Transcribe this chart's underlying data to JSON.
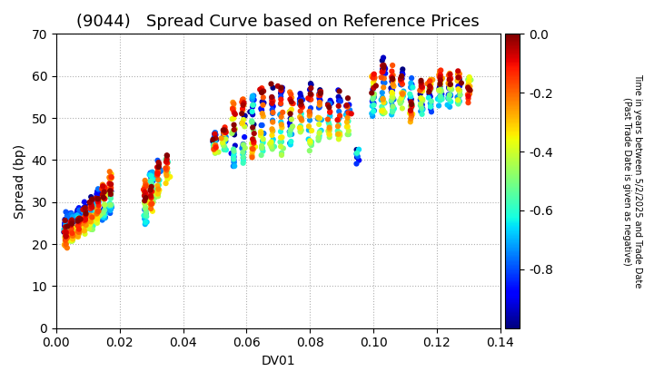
{
  "title": "(9044)   Spread Curve based on Reference Prices",
  "xlabel": "DV01",
  "ylabel": "Spread (bp)",
  "xlim": [
    0.0,
    0.14
  ],
  "ylim": [
    0,
    70
  ],
  "xticks": [
    0.0,
    0.02,
    0.04,
    0.06,
    0.08,
    0.1,
    0.12,
    0.14
  ],
  "yticks": [
    0,
    10,
    20,
    30,
    40,
    50,
    60,
    70
  ],
  "colorbar_label": "Time in years between 5/2/2025 and Trade Date\n(Past Trade Date is given as negative)",
  "clim": [
    -1.0,
    0.0
  ],
  "colorbar_ticks": [
    0.0,
    -0.2,
    -0.4,
    -0.6,
    -0.8
  ],
  "background_color": "#ffffff",
  "grid_color": "#b0b0b0",
  "title_fontsize": 13,
  "axis_fontsize": 10,
  "scatter_size": 20,
  "bonds": [
    {
      "dv01": 0.003,
      "spread_base": 23,
      "spread_range": 5,
      "n": 60,
      "t_min": -1.0,
      "t_max": 0.0
    },
    {
      "dv01": 0.005,
      "spread_base": 24,
      "spread_range": 5,
      "n": 50,
      "t_min": -1.0,
      "t_max": 0.0
    },
    {
      "dv01": 0.007,
      "spread_base": 25,
      "spread_range": 5,
      "n": 55,
      "t_min": -1.0,
      "t_max": 0.0
    },
    {
      "dv01": 0.009,
      "spread_base": 26,
      "spread_range": 5,
      "n": 50,
      "t_min": -1.0,
      "t_max": 0.0
    },
    {
      "dv01": 0.011,
      "spread_base": 27,
      "spread_range": 6,
      "n": 50,
      "t_min": -1.0,
      "t_max": 0.0
    },
    {
      "dv01": 0.013,
      "spread_base": 29,
      "spread_range": 6,
      "n": 45,
      "t_min": -1.0,
      "t_max": 0.0
    },
    {
      "dv01": 0.015,
      "spread_base": 30,
      "spread_range": 7,
      "n": 45,
      "t_min": -1.0,
      "t_max": 0.0
    },
    {
      "dv01": 0.017,
      "spread_base": 32,
      "spread_range": 7,
      "n": 40,
      "t_min": -1.0,
      "t_max": 0.0
    },
    {
      "dv01": 0.028,
      "spread_base": 30,
      "spread_range": 8,
      "n": 35,
      "t_min": -0.9,
      "t_max": 0.0
    },
    {
      "dv01": 0.03,
      "spread_base": 33,
      "spread_range": 8,
      "n": 35,
      "t_min": -0.9,
      "t_max": 0.0
    },
    {
      "dv01": 0.032,
      "spread_base": 35,
      "spread_range": 7,
      "n": 30,
      "t_min": -0.8,
      "t_max": 0.0
    },
    {
      "dv01": 0.035,
      "spread_base": 38,
      "spread_range": 5,
      "n": 20,
      "t_min": -0.6,
      "t_max": 0.0
    },
    {
      "dv01": 0.05,
      "spread_base": 44,
      "spread_range": 4,
      "n": 25,
      "t_min": -1.0,
      "t_max": 0.0
    },
    {
      "dv01": 0.053,
      "spread_base": 45,
      "spread_range": 4,
      "n": 25,
      "t_min": -1.0,
      "t_max": 0.0
    },
    {
      "dv01": 0.056,
      "spread_base": 46,
      "spread_range": 14,
      "n": 30,
      "t_min": -1.0,
      "t_max": 0.0
    },
    {
      "dv01": 0.059,
      "spread_base": 47,
      "spread_range": 14,
      "n": 30,
      "t_min": -1.0,
      "t_max": 0.0
    },
    {
      "dv01": 0.062,
      "spread_base": 48,
      "spread_range": 14,
      "n": 30,
      "t_min": -1.0,
      "t_max": 0.0
    },
    {
      "dv01": 0.065,
      "spread_base": 49,
      "spread_range": 14,
      "n": 30,
      "t_min": -1.0,
      "t_max": 0.0
    },
    {
      "dv01": 0.068,
      "spread_base": 49,
      "spread_range": 14,
      "n": 28,
      "t_min": -1.0,
      "t_max": 0.0
    },
    {
      "dv01": 0.071,
      "spread_base": 50,
      "spread_range": 14,
      "n": 28,
      "t_min": -1.0,
      "t_max": 0.0
    },
    {
      "dv01": 0.074,
      "spread_base": 50,
      "spread_range": 10,
      "n": 25,
      "t_min": -1.0,
      "t_max": 0.0
    },
    {
      "dv01": 0.077,
      "spread_base": 51,
      "spread_range": 8,
      "n": 25,
      "t_min": -1.0,
      "t_max": 0.0
    },
    {
      "dv01": 0.08,
      "spread_base": 50,
      "spread_range": 14,
      "n": 28,
      "t_min": -1.0,
      "t_max": 0.0
    },
    {
      "dv01": 0.083,
      "spread_base": 51,
      "spread_range": 10,
      "n": 25,
      "t_min": -1.0,
      "t_max": 0.0
    },
    {
      "dv01": 0.086,
      "spread_base": 50,
      "spread_range": 8,
      "n": 22,
      "t_min": -1.0,
      "t_max": 0.0
    },
    {
      "dv01": 0.089,
      "spread_base": 50,
      "spread_range": 10,
      "n": 22,
      "t_min": -1.0,
      "t_max": 0.0
    },
    {
      "dv01": 0.092,
      "spread_base": 50,
      "spread_range": 6,
      "n": 20,
      "t_min": -0.9,
      "t_max": 0.0
    },
    {
      "dv01": 0.095,
      "spread_base": 41,
      "spread_range": 4,
      "n": 8,
      "t_min": -1.0,
      "t_max": -0.6
    },
    {
      "dv01": 0.1,
      "spread_base": 56,
      "spread_range": 8,
      "n": 30,
      "t_min": -1.0,
      "t_max": 0.0
    },
    {
      "dv01": 0.103,
      "spread_base": 57,
      "spread_range": 12,
      "n": 35,
      "t_min": -1.0,
      "t_max": 0.0
    },
    {
      "dv01": 0.106,
      "spread_base": 56,
      "spread_range": 8,
      "n": 30,
      "t_min": -1.0,
      "t_max": 0.0
    },
    {
      "dv01": 0.109,
      "spread_base": 57,
      "spread_range": 6,
      "n": 28,
      "t_min": -1.0,
      "t_max": 0.0
    },
    {
      "dv01": 0.112,
      "spread_base": 54,
      "spread_range": 8,
      "n": 30,
      "t_min": -1.0,
      "t_max": 0.0
    },
    {
      "dv01": 0.115,
      "spread_base": 55,
      "spread_range": 6,
      "n": 28,
      "t_min": -1.0,
      "t_max": 0.0
    },
    {
      "dv01": 0.118,
      "spread_base": 56,
      "spread_range": 6,
      "n": 28,
      "t_min": -1.0,
      "t_max": 0.0
    },
    {
      "dv01": 0.121,
      "spread_base": 57,
      "spread_range": 6,
      "n": 30,
      "t_min": -1.0,
      "t_max": 0.0
    },
    {
      "dv01": 0.124,
      "spread_base": 57,
      "spread_range": 6,
      "n": 28,
      "t_min": -1.0,
      "t_max": 0.0
    },
    {
      "dv01": 0.127,
      "spread_base": 57,
      "spread_range": 6,
      "n": 28,
      "t_min": -1.0,
      "t_max": 0.0
    },
    {
      "dv01": 0.13,
      "spread_base": 57,
      "spread_range": 5,
      "n": 20,
      "t_min": -0.5,
      "t_max": 0.0
    }
  ]
}
